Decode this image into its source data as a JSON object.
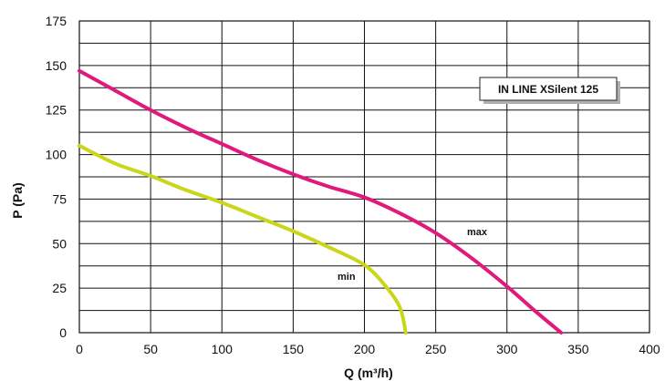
{
  "chart_data": {
    "type": "line",
    "title": "",
    "xlabel": "Q (m³/h)",
    "ylabel": "P (Pa)",
    "xlim": [
      0,
      400
    ],
    "ylim": [
      0,
      175
    ],
    "x_ticks": [
      0,
      50,
      100,
      150,
      200,
      250,
      300,
      350,
      400
    ],
    "y_ticks": [
      0,
      25,
      50,
      75,
      100,
      125,
      150,
      175
    ],
    "grid": true,
    "annotation": "IN LINE XSilent 125",
    "series": [
      {
        "name": "max",
        "color": "#e0197d",
        "x": [
          0,
          25,
          50,
          75,
          100,
          125,
          150,
          175,
          200,
          225,
          250,
          275,
          300,
          320,
          338
        ],
        "y": [
          147,
          136,
          125,
          115,
          106,
          97,
          89,
          82,
          76,
          67,
          56,
          42,
          26,
          12,
          0
        ]
      },
      {
        "name": "min",
        "color": "#c9d619",
        "x": [
          0,
          25,
          50,
          75,
          100,
          125,
          150,
          175,
          200,
          215,
          225,
          229
        ],
        "y": [
          105,
          95,
          88,
          80,
          73,
          65,
          57,
          48,
          38,
          26,
          14,
          0
        ]
      }
    ]
  }
}
